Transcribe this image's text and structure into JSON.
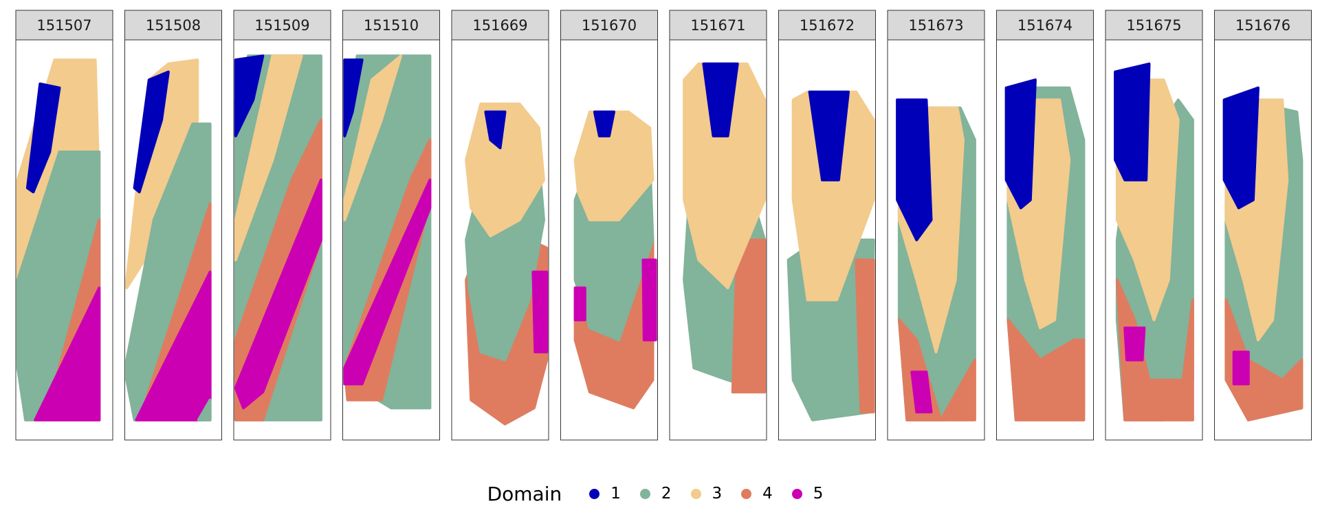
{
  "chart_data": {
    "type": "scatter",
    "title": "",
    "facets": [
      "151507",
      "151508",
      "151509",
      "151510",
      "151669",
      "151670",
      "151671",
      "151672",
      "151673",
      "151674",
      "151675",
      "151676"
    ],
    "legend": {
      "title": "Domain",
      "position": "bottom",
      "entries": [
        {
          "label": "1",
          "color": "#0000b8"
        },
        {
          "label": "2",
          "color": "#82b39b"
        },
        {
          "label": "3",
          "color": "#f2cb8d"
        },
        {
          "label": "4",
          "color": "#df7c5f"
        },
        {
          "label": "5",
          "color": "#cc00b3"
        }
      ]
    },
    "grid": false
  }
}
